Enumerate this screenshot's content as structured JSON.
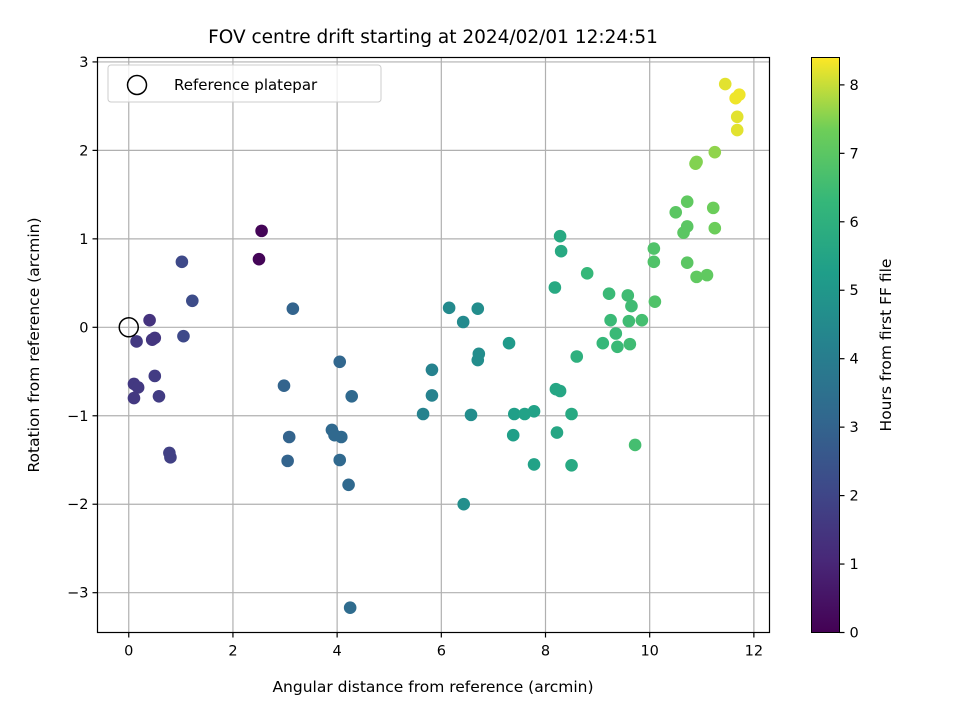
{
  "chart_data": {
    "type": "scatter",
    "title": "FOV centre drift starting at 2024/02/01 12:24:51",
    "xlabel": "Angular distance from reference (arcmin)",
    "ylabel": "Rotation from reference (arcmin)",
    "xlim": [
      -0.6,
      12.3
    ],
    "ylim": [
      -3.45,
      3.05
    ],
    "xticks": [
      0,
      2,
      4,
      6,
      8,
      10,
      12
    ],
    "yticks": [
      -3,
      -2,
      -1,
      0,
      1,
      2,
      3
    ],
    "grid": true,
    "legend": {
      "placement": "top-left",
      "entries": [
        "Reference platepar"
      ]
    },
    "reference_point": {
      "x": 0,
      "y": 0
    },
    "colorbar": {
      "label": "Hours from first FF file",
      "colormap": "viridis",
      "range": [
        0,
        8.4
      ],
      "ticks": [
        0,
        1,
        2,
        3,
        4,
        5,
        6,
        7,
        8
      ]
    },
    "points": [
      {
        "x": 2.5,
        "y": 0.77,
        "c": 0.1
      },
      {
        "x": 2.55,
        "y": 1.09,
        "c": 0.1
      },
      {
        "x": 0.4,
        "y": 0.08,
        "c": 1.4
      },
      {
        "x": 0.15,
        "y": -0.16,
        "c": 1.6
      },
      {
        "x": 0.45,
        "y": -0.14,
        "c": 1.5
      },
      {
        "x": 0.5,
        "y": -0.12,
        "c": 1.5
      },
      {
        "x": 0.1,
        "y": -0.64,
        "c": 1.6
      },
      {
        "x": 0.18,
        "y": -0.68,
        "c": 1.6
      },
      {
        "x": 0.1,
        "y": -0.8,
        "c": 1.6
      },
      {
        "x": 0.5,
        "y": -0.55,
        "c": 1.7
      },
      {
        "x": 0.58,
        "y": -0.78,
        "c": 1.7
      },
      {
        "x": 0.78,
        "y": -1.42,
        "c": 1.8
      },
      {
        "x": 0.8,
        "y": -1.47,
        "c": 1.8
      },
      {
        "x": 1.02,
        "y": 0.74,
        "c": 2.1
      },
      {
        "x": 1.05,
        "y": -0.1,
        "c": 2.1
      },
      {
        "x": 1.22,
        "y": 0.3,
        "c": 2.2
      },
      {
        "x": 3.15,
        "y": 0.21,
        "c": 3.0
      },
      {
        "x": 2.98,
        "y": -0.66,
        "c": 3.0
      },
      {
        "x": 3.08,
        "y": -1.24,
        "c": 3.0
      },
      {
        "x": 3.05,
        "y": -1.51,
        "c": 3.0
      },
      {
        "x": 4.05,
        "y": -0.39,
        "c": 3.1
      },
      {
        "x": 4.28,
        "y": -0.78,
        "c": 3.2
      },
      {
        "x": 3.9,
        "y": -1.16,
        "c": 3.2
      },
      {
        "x": 3.95,
        "y": -1.22,
        "c": 3.2
      },
      {
        "x": 4.08,
        "y": -1.24,
        "c": 3.2
      },
      {
        "x": 4.05,
        "y": -1.5,
        "c": 3.2
      },
      {
        "x": 4.22,
        "y": -1.78,
        "c": 3.2
      },
      {
        "x": 4.25,
        "y": -3.17,
        "c": 3.3
      },
      {
        "x": 5.82,
        "y": -0.48,
        "c": 4.2
      },
      {
        "x": 5.82,
        "y": -0.77,
        "c": 4.2
      },
      {
        "x": 5.65,
        "y": -0.98,
        "c": 4.2
      },
      {
        "x": 6.15,
        "y": 0.22,
        "c": 4.5
      },
      {
        "x": 6.42,
        "y": 0.06,
        "c": 4.5
      },
      {
        "x": 6.7,
        "y": 0.21,
        "c": 4.6
      },
      {
        "x": 6.72,
        "y": -0.3,
        "c": 4.6
      },
      {
        "x": 6.7,
        "y": -0.37,
        "c": 4.6
      },
      {
        "x": 6.57,
        "y": -0.99,
        "c": 4.6
      },
      {
        "x": 6.43,
        "y": -2.0,
        "c": 4.7
      },
      {
        "x": 7.3,
        "y": -0.18,
        "c": 5.1
      },
      {
        "x": 7.4,
        "y": -0.98,
        "c": 5.3
      },
      {
        "x": 7.38,
        "y": -1.22,
        "c": 5.3
      },
      {
        "x": 7.6,
        "y": -0.98,
        "c": 5.4
      },
      {
        "x": 7.78,
        "y": -0.95,
        "c": 5.4
      },
      {
        "x": 7.78,
        "y": -1.55,
        "c": 5.4
      },
      {
        "x": 8.28,
        "y": 1.03,
        "c": 5.7
      },
      {
        "x": 8.3,
        "y": 0.86,
        "c": 5.7
      },
      {
        "x": 8.18,
        "y": 0.45,
        "c": 5.7
      },
      {
        "x": 8.2,
        "y": -0.7,
        "c": 5.6
      },
      {
        "x": 8.28,
        "y": -0.72,
        "c": 5.6
      },
      {
        "x": 8.22,
        "y": -1.19,
        "c": 5.6
      },
      {
        "x": 8.5,
        "y": -0.98,
        "c": 5.7
      },
      {
        "x": 8.5,
        "y": -1.56,
        "c": 5.7
      },
      {
        "x": 8.6,
        "y": -0.33,
        "c": 6.0
      },
      {
        "x": 8.8,
        "y": 0.61,
        "c": 6.3
      },
      {
        "x": 9.1,
        "y": -0.18,
        "c": 6.3
      },
      {
        "x": 9.22,
        "y": 0.38,
        "c": 6.4
      },
      {
        "x": 9.25,
        "y": 0.08,
        "c": 6.4
      },
      {
        "x": 9.35,
        "y": -0.07,
        "c": 6.4
      },
      {
        "x": 9.38,
        "y": -0.22,
        "c": 6.4
      },
      {
        "x": 9.58,
        "y": 0.36,
        "c": 6.5
      },
      {
        "x": 9.65,
        "y": 0.24,
        "c": 6.5
      },
      {
        "x": 9.6,
        "y": 0.07,
        "c": 6.5
      },
      {
        "x": 9.62,
        "y": -0.19,
        "c": 6.5
      },
      {
        "x": 9.85,
        "y": 0.08,
        "c": 6.6
      },
      {
        "x": 9.72,
        "y": -1.33,
        "c": 6.6
      },
      {
        "x": 10.08,
        "y": 0.89,
        "c": 6.8
      },
      {
        "x": 10.08,
        "y": 0.74,
        "c": 6.8
      },
      {
        "x": 10.1,
        "y": 0.29,
        "c": 6.8
      },
      {
        "x": 10.5,
        "y": 1.3,
        "c": 7.0
      },
      {
        "x": 10.65,
        "y": 1.07,
        "c": 7.0
      },
      {
        "x": 10.72,
        "y": 1.14,
        "c": 7.0
      },
      {
        "x": 10.72,
        "y": 1.42,
        "c": 7.1
      },
      {
        "x": 10.72,
        "y": 0.73,
        "c": 7.0
      },
      {
        "x": 10.9,
        "y": 0.57,
        "c": 7.1
      },
      {
        "x": 11.1,
        "y": 0.59,
        "c": 7.1
      },
      {
        "x": 10.88,
        "y": 1.85,
        "c": 7.5
      },
      {
        "x": 10.9,
        "y": 1.87,
        "c": 7.5
      },
      {
        "x": 11.22,
        "y": 1.35,
        "c": 7.3
      },
      {
        "x": 11.25,
        "y": 1.12,
        "c": 7.3
      },
      {
        "x": 11.25,
        "y": 1.98,
        "c": 7.6
      },
      {
        "x": 11.45,
        "y": 2.75,
        "c": 8.2
      },
      {
        "x": 11.65,
        "y": 2.59,
        "c": 8.3
      },
      {
        "x": 11.72,
        "y": 2.63,
        "c": 8.3
      },
      {
        "x": 11.68,
        "y": 2.38,
        "c": 8.2
      },
      {
        "x": 11.68,
        "y": 2.23,
        "c": 8.2
      }
    ]
  },
  "colors": {
    "grid": "#b0b0b0",
    "axes": "#000000"
  }
}
